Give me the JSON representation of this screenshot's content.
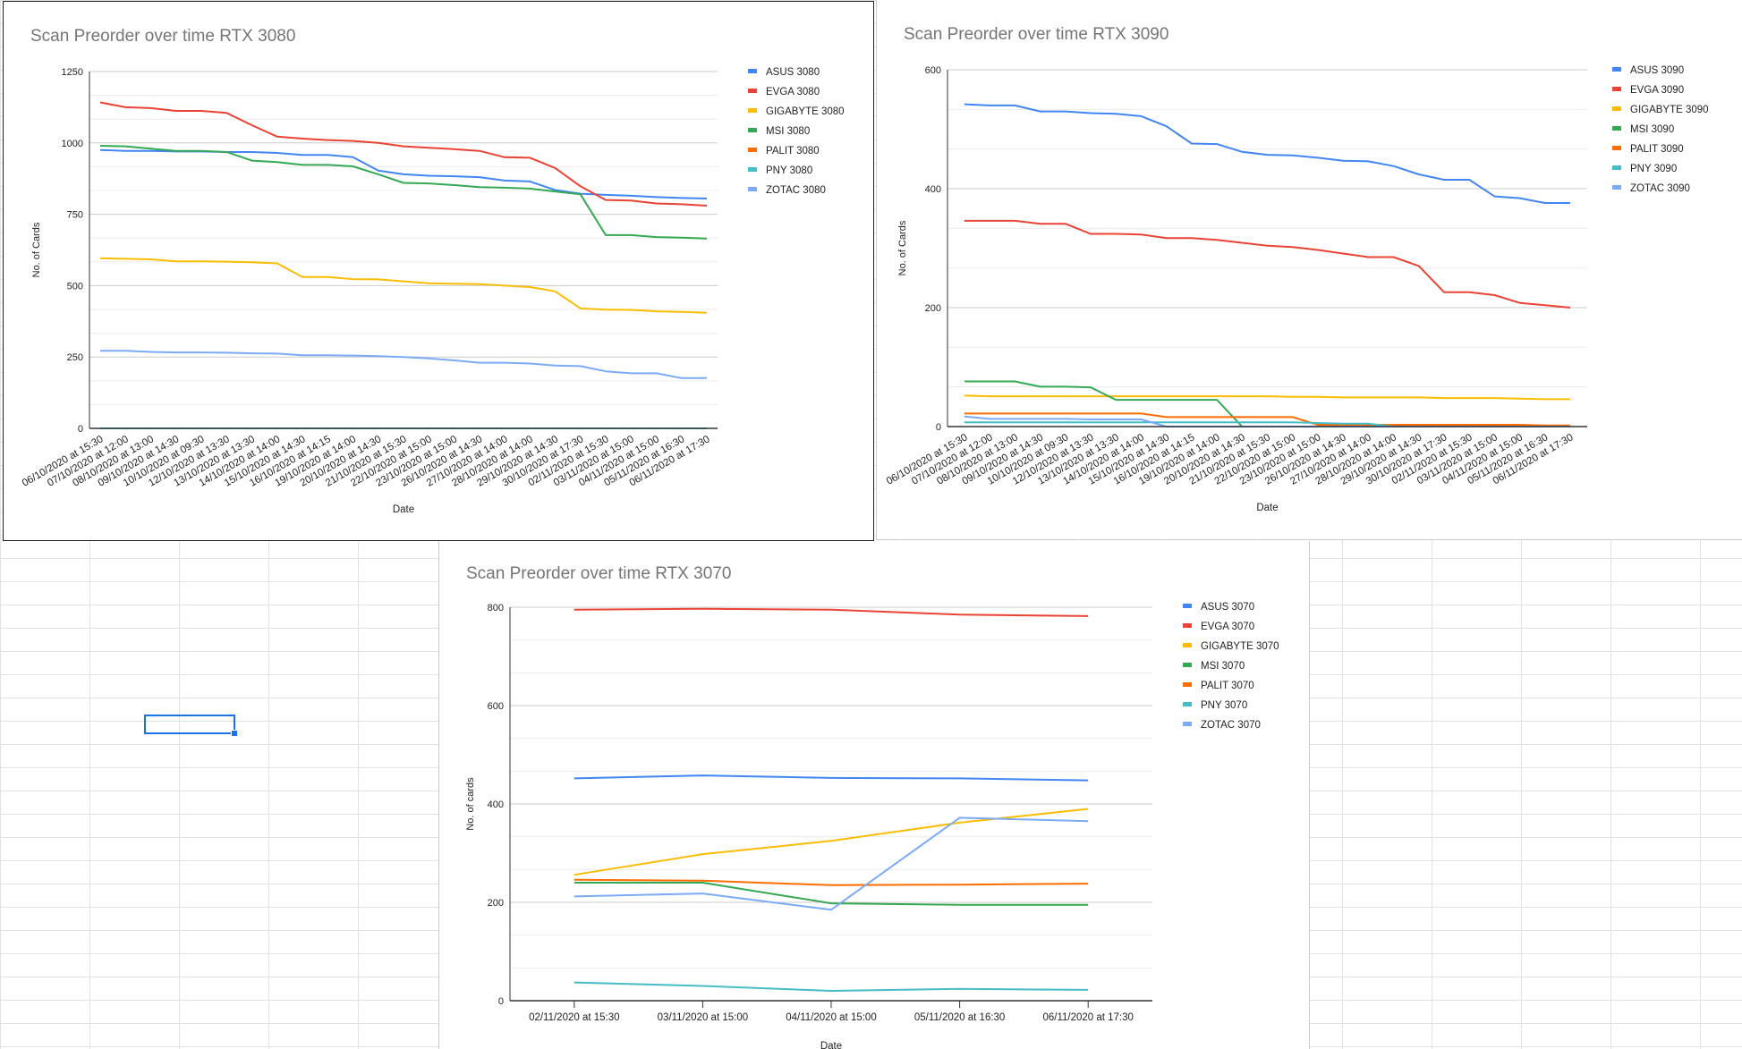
{
  "chart_data": [
    {
      "type": "line",
      "title": "Scan Preorder over time RTX 3080",
      "xlabel": "Date",
      "ylabel": "No. of Cards",
      "ylim": [
        0,
        1250
      ],
      "yticks": [
        0,
        250,
        500,
        750,
        1000,
        1250
      ],
      "grid": true,
      "legend": "right",
      "x": [
        "06/10/2020 at 15:30",
        "07/10/2020 at 12:00",
        "08/10/2020 at 13:00",
        "09/10/2020 at 14:30",
        "10/10/2020 at 09:30",
        "12/10/2020 at 13:30",
        "13/10/2020 at 13:30",
        "14/10/2020 at 14:00",
        "15/10/2020 at 14:30",
        "16/10/2020 at 14:15",
        "19/10/2020 at 14:00",
        "20/10/2020 at 14:30",
        "21/10/2020 at 15:30",
        "22/10/2020 at 15:00",
        "23/10/2020 at 15:00",
        "26/10/2020 at 14:30",
        "27/10/2020 at 14:00",
        "28/10/2020 at 14:00",
        "29/10/2020 at 14:30",
        "30/10/2020 at 17:30",
        "02/11/2020 at 15:30",
        "03/11/2020 at 15:00",
        "04/11/2020 at 15:00",
        "05/11/2020 at 16:30",
        "06/11/2020 at 17:30"
      ],
      "series": [
        {
          "name": "ASUS 3080",
          "color": "#4285f4",
          "values": [
            975,
            972,
            972,
            970,
            970,
            968,
            968,
            965,
            958,
            958,
            950,
            903,
            890,
            885,
            883,
            880,
            868,
            865,
            835,
            822,
            818,
            815,
            810,
            807,
            805
          ]
        },
        {
          "name": "EVGA 3080",
          "color": "#ea4335",
          "values": [
            1142,
            1125,
            1122,
            1112,
            1112,
            1105,
            1062,
            1022,
            1015,
            1010,
            1007,
            1000,
            988,
            983,
            978,
            972,
            950,
            948,
            912,
            848,
            800,
            798,
            788,
            785,
            780
          ]
        },
        {
          "name": "GIGABYTE 3080",
          "color": "#fbbc04",
          "values": [
            596,
            594,
            592,
            585,
            585,
            584,
            582,
            578,
            530,
            530,
            523,
            522,
            515,
            508,
            507,
            505,
            500,
            495,
            480,
            420,
            416,
            415,
            410,
            408,
            405
          ]
        },
        {
          "name": "MSI 3080",
          "color": "#34a853",
          "values": [
            990,
            988,
            980,
            972,
            972,
            968,
            938,
            933,
            923,
            923,
            918,
            890,
            860,
            858,
            852,
            845,
            843,
            840,
            830,
            820,
            677,
            677,
            670,
            668,
            665
          ]
        },
        {
          "name": "PALIT 3080",
          "color": "#ff6d01",
          "values": [
            0,
            0,
            0,
            0,
            0,
            0,
            0,
            0,
            0,
            0,
            0,
            0,
            0,
            0,
            0,
            0,
            0,
            0,
            0,
            0,
            0,
            0,
            0,
            0,
            0
          ]
        },
        {
          "name": "PNY 3080",
          "color": "#46bdc6",
          "values": [
            0,
            0,
            0,
            0,
            0,
            0,
            0,
            0,
            0,
            0,
            0,
            0,
            0,
            0,
            0,
            0,
            0,
            0,
            0,
            0,
            0,
            0,
            0,
            0,
            0
          ]
        },
        {
          "name": "ZOTAC 3080",
          "color": "#7baaf7",
          "values": [
            272,
            272,
            268,
            266,
            266,
            265,
            263,
            262,
            256,
            256,
            255,
            253,
            250,
            245,
            238,
            230,
            230,
            227,
            220,
            218,
            200,
            193,
            193,
            176,
            176
          ]
        }
      ]
    },
    {
      "type": "line",
      "title": "Scan Preorder over time RTX 3090",
      "xlabel": "Date",
      "ylabel": "No. of Cards",
      "ylim": [
        0,
        600
      ],
      "yticks": [
        0,
        200,
        400,
        600
      ],
      "grid": true,
      "legend": "right",
      "x": [
        "06/10/2020 at 15:30",
        "07/10/2020 at 12:00",
        "08/10/2020 at 13:00",
        "09/10/2020 at 14:30",
        "10/10/2020 at 09:30",
        "12/10/2020 at 13:30",
        "13/10/2020 at 13:30",
        "14/10/2020 at 14:00",
        "15/10/2020 at 14:30",
        "16/10/2020 at 14:15",
        "19/10/2020 at 14:00",
        "20/10/2020 at 14:30",
        "21/10/2020 at 15:30",
        "22/10/2020 at 15:00",
        "23/10/2020 at 15:00",
        "26/10/2020 at 14:30",
        "27/10/2020 at 14:00",
        "28/10/2020 at 14:00",
        "29/10/2020 at 14:30",
        "30/10/2020 at 17:30",
        "02/11/2020 at 15:30",
        "03/11/2020 at 15:00",
        "04/11/2020 at 15:00",
        "05/11/2020 at 16:30",
        "06/11/2020 at 17:30"
      ],
      "series": [
        {
          "name": "ASUS 3090",
          "color": "#4285f4",
          "values": [
            542,
            540,
            540,
            530,
            530,
            527,
            526,
            522,
            505,
            476,
            475,
            462,
            457,
            456,
            452,
            447,
            446,
            438,
            424,
            415,
            415,
            387,
            384,
            376,
            376
          ]
        },
        {
          "name": "EVGA 3090",
          "color": "#ea4335",
          "values": [
            346,
            346,
            346,
            341,
            341,
            324,
            324,
            323,
            317,
            317,
            314,
            309,
            304,
            302,
            297,
            291,
            285,
            285,
            270,
            226,
            226,
            221,
            208,
            204,
            200
          ]
        },
        {
          "name": "GIGABYTE 3090",
          "color": "#fbbc04",
          "values": [
            52,
            51,
            51,
            51,
            51,
            51,
            51,
            51,
            51,
            51,
            51,
            51,
            51,
            50,
            50,
            49,
            49,
            49,
            49,
            48,
            48,
            48,
            47,
            46,
            46
          ]
        },
        {
          "name": "MSI 3090",
          "color": "#34a853",
          "values": [
            76,
            76,
            76,
            67,
            67,
            66,
            45,
            45,
            45,
            45,
            45,
            0,
            0,
            0,
            0,
            0,
            0,
            0,
            0,
            0,
            0,
            0,
            0,
            0,
            0
          ]
        },
        {
          "name": "PALIT 3090",
          "color": "#ff6d01",
          "values": [
            22,
            22,
            22,
            22,
            22,
            22,
            22,
            22,
            16,
            16,
            16,
            16,
            16,
            16,
            3,
            3,
            3,
            3,
            3,
            3,
            3,
            3,
            3,
            2,
            2
          ]
        },
        {
          "name": "PNY 3090",
          "color": "#46bdc6",
          "values": [
            7,
            7,
            7,
            7,
            7,
            7,
            7,
            7,
            7,
            7,
            7,
            7,
            7,
            7,
            6,
            5,
            5,
            0,
            0,
            0,
            0,
            0,
            0,
            0,
            0
          ]
        },
        {
          "name": "ZOTAC 3090",
          "color": "#7baaf7",
          "values": [
            17,
            13,
            13,
            13,
            13,
            12,
            12,
            12,
            0,
            0,
            0,
            0,
            0,
            0,
            0,
            0,
            0,
            0,
            0,
            0,
            0,
            0,
            0,
            0,
            0
          ]
        }
      ]
    },
    {
      "type": "line",
      "title": "Scan Preorder over time RTX 3070",
      "xlabel": "Date",
      "ylabel": "No. of cards",
      "ylim": [
        0,
        800
      ],
      "yticks": [
        0,
        200,
        400,
        600,
        800
      ],
      "grid": true,
      "legend": "right",
      "x": [
        "02/11/2020 at 15:30",
        "03/11/2020 at 15:00",
        "04/11/2020 at 15:00",
        "05/11/2020 at 16:30",
        "06/11/2020 at 17:30"
      ],
      "series": [
        {
          "name": "ASUS 3070",
          "color": "#4285f4",
          "values": [
            452,
            458,
            453,
            452,
            448
          ]
        },
        {
          "name": "EVGA 3070",
          "color": "#ea4335",
          "values": [
            795,
            797,
            795,
            785,
            782
          ]
        },
        {
          "name": "GIGABYTE 3070",
          "color": "#fbbc04",
          "values": [
            256,
            298,
            325,
            362,
            390
          ]
        },
        {
          "name": "MSI 3070",
          "color": "#34a853",
          "values": [
            240,
            240,
            198,
            195,
            195
          ]
        },
        {
          "name": "PALIT 3070",
          "color": "#ff6d01",
          "values": [
            246,
            244,
            235,
            236,
            238
          ]
        },
        {
          "name": "PNY 3070",
          "color": "#46bdc6",
          "values": [
            37,
            30,
            20,
            24,
            22
          ]
        },
        {
          "name": "ZOTAC 3070",
          "color": "#7baaf7",
          "values": [
            212,
            218,
            185,
            372,
            365
          ]
        }
      ]
    }
  ]
}
